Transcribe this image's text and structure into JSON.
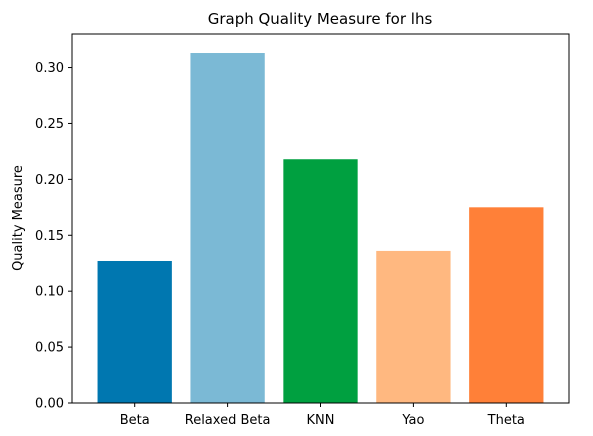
{
  "chart_data": {
    "type": "bar",
    "title": "Graph Quality Measure for lhs",
    "xlabel": "",
    "ylabel": "Quality Measure",
    "categories": [
      "Beta",
      "Relaxed Beta",
      "KNN",
      "Yao",
      "Theta"
    ],
    "values": [
      0.127,
      0.313,
      0.218,
      0.136,
      0.175
    ],
    "colors": [
      "#0077b0",
      "#7bb9d5",
      "#00a040",
      "#ffb880",
      "#ff8038"
    ],
    "ylim": [
      0,
      0.33
    ],
    "yticks": [
      0.0,
      0.05,
      0.1,
      0.15,
      0.2,
      0.25,
      0.3
    ],
    "ytick_labels": [
      "0.00",
      "0.05",
      "0.10",
      "0.15",
      "0.20",
      "0.25",
      "0.30"
    ],
    "grid": false,
    "legend": "none"
  }
}
